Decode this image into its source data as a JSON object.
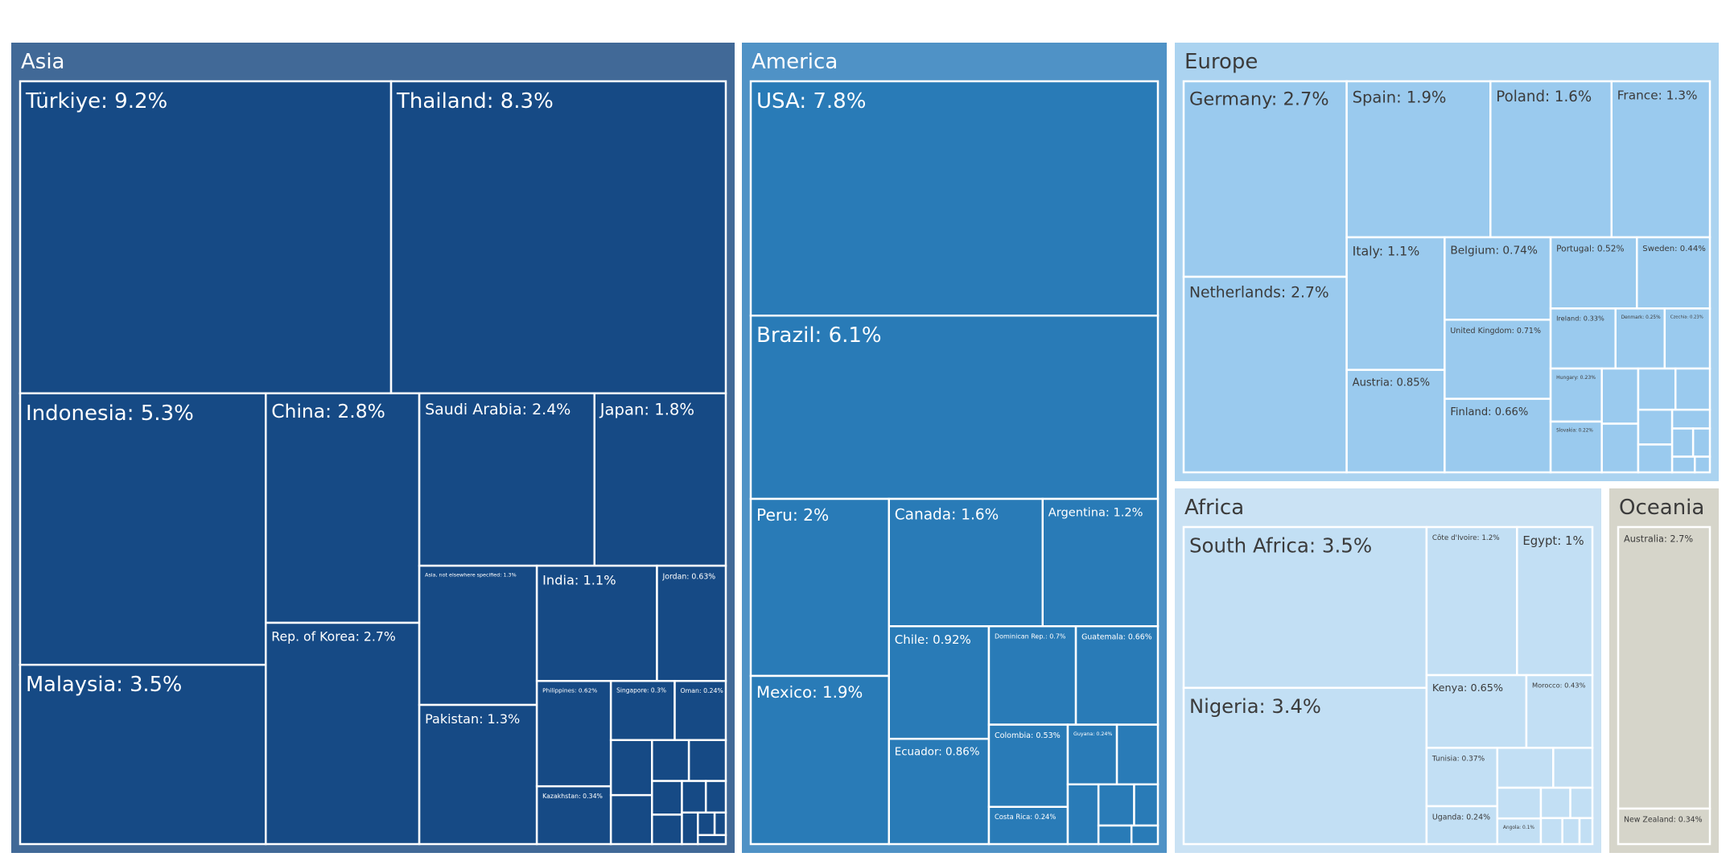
{
  "chart_data": {
    "type": "treemap",
    "regions": [
      {
        "name": "Asia",
        "color": "#416997",
        "tile_color": "#164a85",
        "text_color": "#ffffff",
        "items": [
          {
            "label": "Türkiye: 9.2%",
            "value": 9.2
          },
          {
            "label": "Thailand: 8.3%",
            "value": 8.3
          },
          {
            "label": "Indonesia: 5.3%",
            "value": 5.3
          },
          {
            "label": "Malaysia: 3.5%",
            "value": 3.5
          },
          {
            "label": "China: 2.8%",
            "value": 2.8
          },
          {
            "label": "Rep. of Korea: 2.7%",
            "value": 2.7
          },
          {
            "label": "Saudi Arabia: 2.4%",
            "value": 2.4
          },
          {
            "label": "Japan: 1.8%",
            "value": 1.8
          },
          {
            "label": "Asia, not elsewhere specified: 1.3%",
            "value": 1.3
          },
          {
            "label": "Pakistan: 1.3%",
            "value": 1.3
          },
          {
            "label": "India: 1.1%",
            "value": 1.1
          },
          {
            "label": "Jordan: 0.63%",
            "value": 0.63
          },
          {
            "label": "Philippines: 0.62%",
            "value": 0.62
          },
          {
            "label": "Singapore: 0.3%",
            "value": 0.3
          },
          {
            "label": "Oman: 0.24%",
            "value": 0.24
          },
          {
            "label": "Kazakhstan: 0.34%",
            "value": 0.34
          },
          {
            "label": "",
            "value": 0.18
          },
          {
            "label": "",
            "value": 0.16
          },
          {
            "label": "",
            "value": 0.12
          },
          {
            "label": "",
            "value": 0.12
          },
          {
            "label": "",
            "value": 0.08
          },
          {
            "label": "",
            "value": 0.07
          },
          {
            "label": "",
            "value": 0.06
          },
          {
            "label": "",
            "value": 0.05
          },
          {
            "label": "",
            "value": 0.04
          },
          {
            "label": "",
            "value": 0.03
          },
          {
            "label": "",
            "value": 0.02
          },
          {
            "label": "",
            "value": 0.02
          }
        ]
      },
      {
        "name": "America",
        "color": "#4f92c6",
        "tile_color": "#297bb7",
        "text_color": "#ffffff",
        "items": [
          {
            "label": "USA: 7.8%",
            "value": 7.8
          },
          {
            "label": "Brazil: 6.1%",
            "value": 6.1
          },
          {
            "label": "Peru: 2%",
            "value": 2.0
          },
          {
            "label": "Mexico: 1.9%",
            "value": 1.9
          },
          {
            "label": "Canada: 1.6%",
            "value": 1.6
          },
          {
            "label": "Argentina: 1.2%",
            "value": 1.2
          },
          {
            "label": "Chile: 0.92%",
            "value": 0.92
          },
          {
            "label": "Ecuador: 0.86%",
            "value": 0.86
          },
          {
            "label": "Dominican Rep.: 0.7%",
            "value": 0.7
          },
          {
            "label": "Guatemala: 0.66%",
            "value": 0.66
          },
          {
            "label": "Colombia: 0.53%",
            "value": 0.53
          },
          {
            "label": "Costa Rica: 0.24%",
            "value": 0.24
          },
          {
            "label": "Guyana: 0.24%",
            "value": 0.24
          },
          {
            "label": "",
            "value": 0.2
          },
          {
            "label": "",
            "value": 0.15
          },
          {
            "label": "",
            "value": 0.12
          },
          {
            "label": "",
            "value": 0.08
          },
          {
            "label": "",
            "value": 0.05
          },
          {
            "label": "",
            "value": 0.04
          }
        ]
      },
      {
        "name": "Europe",
        "color": "#abd3f0",
        "tile_color": "#9acaee",
        "text_color": "#3b3b3b",
        "items": [
          {
            "label": "Germany: 2.7%",
            "value": 2.7
          },
          {
            "label": "Netherlands: 2.7%",
            "value": 2.7
          },
          {
            "label": "Spain: 1.9%",
            "value": 1.9
          },
          {
            "label": "Poland: 1.6%",
            "value": 1.6
          },
          {
            "label": "France: 1.3%",
            "value": 1.3
          },
          {
            "label": "Italy: 1.1%",
            "value": 1.1
          },
          {
            "label": "Austria: 0.85%",
            "value": 0.85
          },
          {
            "label": "Belgium: 0.74%",
            "value": 0.74
          },
          {
            "label": "United Kingdom: 0.71%",
            "value": 0.71
          },
          {
            "label": "Finland: 0.66%",
            "value": 0.66
          },
          {
            "label": "Portugal: 0.52%",
            "value": 0.52
          },
          {
            "label": "Sweden: 0.44%",
            "value": 0.44
          },
          {
            "label": "Ireland: 0.33%",
            "value": 0.33
          },
          {
            "label": "Denmark: 0.25%",
            "value": 0.25
          },
          {
            "label": "Czechia: 0.23%",
            "value": 0.23
          },
          {
            "label": "Hungary: 0.23%",
            "value": 0.23
          },
          {
            "label": "Slovakia: 0.22%",
            "value": 0.22
          },
          {
            "label": "",
            "value": 0.17
          },
          {
            "label": "",
            "value": 0.15
          },
          {
            "label": "",
            "value": 0.13
          },
          {
            "label": "",
            "value": 0.12
          },
          {
            "label": "",
            "value": 0.1
          },
          {
            "label": "",
            "value": 0.08
          },
          {
            "label": "",
            "value": 0.06
          },
          {
            "label": "",
            "value": 0.05
          },
          {
            "label": "",
            "value": 0.04
          },
          {
            "label": "",
            "value": 0.03
          },
          {
            "label": "",
            "value": 0.02
          }
        ]
      },
      {
        "name": "Africa",
        "color": "#cae2f4",
        "tile_color": "#c2dff4",
        "text_color": "#3b3b3b",
        "items": [
          {
            "label": "South Africa: 3.5%",
            "value": 3.5
          },
          {
            "label": "Nigeria: 3.4%",
            "value": 3.4
          },
          {
            "label": "Côte d'Ivoire: 1.2%",
            "value": 1.2
          },
          {
            "label": "Egypt: 1%",
            "value": 1.0
          },
          {
            "label": "Kenya: 0.65%",
            "value": 0.65
          },
          {
            "label": "Morocco: 0.43%",
            "value": 0.43
          },
          {
            "label": "Tunisia: 0.37%",
            "value": 0.37
          },
          {
            "label": "Uganda: 0.24%",
            "value": 0.24
          },
          {
            "label": "Angola: 0.1%",
            "value": 0.1
          },
          {
            "label": "",
            "value": 0.2
          },
          {
            "label": "",
            "value": 0.14
          },
          {
            "label": "",
            "value": 0.12
          },
          {
            "label": "",
            "value": 0.08
          },
          {
            "label": "",
            "value": 0.06
          },
          {
            "label": "",
            "value": 0.05
          },
          {
            "label": "",
            "value": 0.04
          },
          {
            "label": "",
            "value": 0.03
          }
        ]
      },
      {
        "name": "Oceania",
        "color": "#d6d5ca",
        "tile_color": "#d6d5ca",
        "text_color": "#3b3b3b",
        "items": [
          {
            "label": "Australia: 2.7%",
            "value": 2.7
          },
          {
            "label": "New Zealand: 0.34%",
            "value": 0.34
          }
        ]
      }
    ]
  }
}
